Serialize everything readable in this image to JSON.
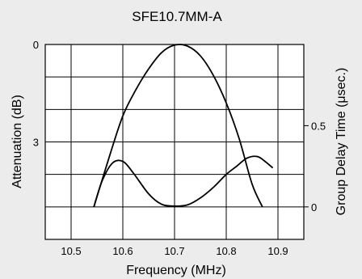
{
  "chart_data": {
    "type": "line",
    "title": "SFE10.7MM-A",
    "xlabel": "Frequency (MHz)",
    "ylabel_left": "Attenuation (dB)",
    "ylabel_right": "Group Delay Time (μsec.)",
    "xlim": [
      10.45,
      10.95
    ],
    "x_ticks": [
      "10.5",
      "10.6",
      "10.7",
      "10.8",
      "10.9"
    ],
    "x_tick_values": [
      10.5,
      10.6,
      10.7,
      10.8,
      10.9
    ],
    "left_ylim": [
      0,
      6
    ],
    "left_ticks": [
      "0",
      "3"
    ],
    "left_tick_values": [
      0,
      3
    ],
    "right_ylim": [
      -0.2,
      1.0
    ],
    "right_ticks": [
      "0.5",
      "0"
    ],
    "right_tick_values": [
      0.5,
      0
    ],
    "grid": true,
    "series": [
      {
        "axis": "left",
        "x": [
          10.544,
          10.575,
          10.6,
          10.625,
          10.65,
          10.675,
          10.7,
          10.725,
          10.75,
          10.775,
          10.8,
          10.825,
          10.85,
          10.87
        ],
        "y": [
          5.0,
          3.4,
          2.2,
          1.4,
          0.75,
          0.25,
          0.02,
          0.05,
          0.35,
          0.95,
          1.8,
          2.9,
          4.3,
          5.0
        ]
      },
      {
        "axis": "right",
        "x": [
          10.544,
          10.56,
          10.58,
          10.6,
          10.62,
          10.65,
          10.675,
          10.7,
          10.725,
          10.75,
          10.775,
          10.8,
          10.82,
          10.84,
          10.86,
          10.875,
          10.89
        ],
        "y": [
          0.0,
          0.16,
          0.27,
          0.28,
          0.21,
          0.08,
          0.016,
          0.005,
          0.012,
          0.055,
          0.12,
          0.2,
          0.25,
          0.3,
          0.31,
          0.28,
          0.24
        ]
      }
    ]
  }
}
